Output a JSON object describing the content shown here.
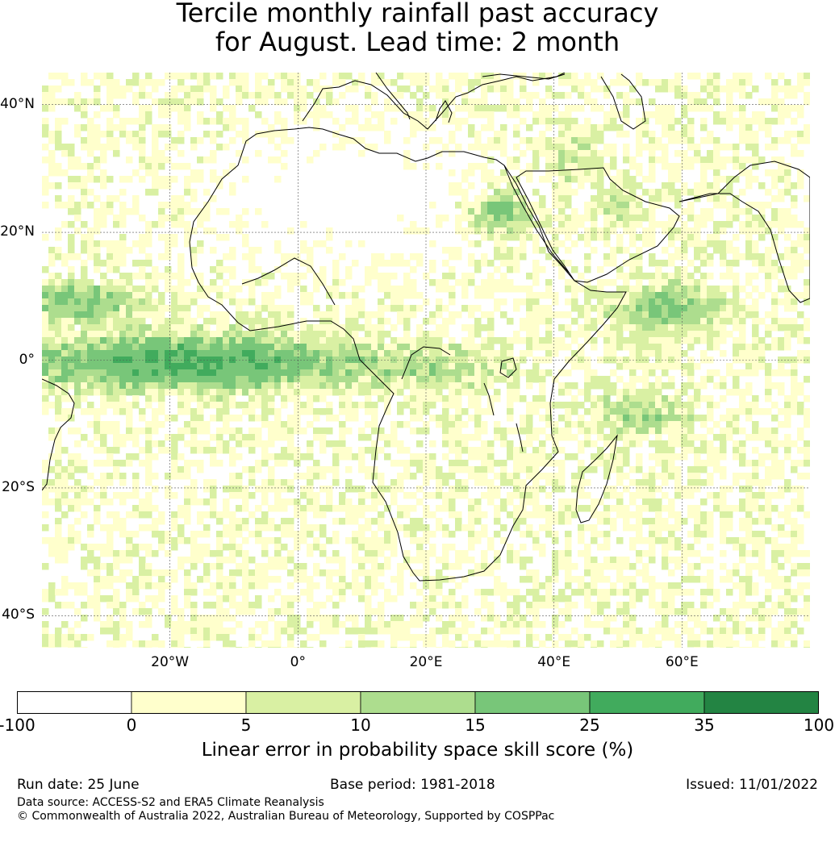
{
  "title_line1": "Tercile monthly rainfall past accuracy",
  "title_line2": "for August. Lead time: 2 month",
  "map": {
    "lon_range": [
      -40,
      80
    ],
    "lat_range": [
      -45,
      45
    ],
    "lat_ticks": [
      {
        "value": 40,
        "label": "40°N"
      },
      {
        "value": 20,
        "label": "20°N"
      },
      {
        "value": 0,
        "label": "0°"
      },
      {
        "value": -20,
        "label": "20°S"
      },
      {
        "value": -40,
        "label": "40°S"
      }
    ],
    "lon_ticks": [
      {
        "value": -20,
        "label": "20°W"
      },
      {
        "value": 0,
        "label": "0°"
      },
      {
        "value": 20,
        "label": "20°E"
      },
      {
        "value": 40,
        "label": "40°E"
      },
      {
        "value": 60,
        "label": "60°E"
      }
    ],
    "gridlines": true,
    "coastline_color": "#000000"
  },
  "colorbar": {
    "bins": [
      {
        "from": -100,
        "to": 0,
        "color": "#ffffff"
      },
      {
        "from": 0,
        "to": 5,
        "color": "#ffffcc"
      },
      {
        "from": 5,
        "to": 10,
        "color": "#d9f0a3"
      },
      {
        "from": 10,
        "to": 15,
        "color": "#addd8e"
      },
      {
        "from": 15,
        "to": 25,
        "color": "#78c679"
      },
      {
        "from": 25,
        "to": 35,
        "color": "#41ab5d"
      },
      {
        "from": 35,
        "to": 100,
        "color": "#238443"
      }
    ],
    "tick_labels": [
      "-100",
      "0",
      "5",
      "10",
      "15",
      "25",
      "35",
      "100"
    ],
    "label": "Linear error in probability space skill score (%)"
  },
  "footer": {
    "run_date": "Run date: 25 June",
    "base_period": "Base period: 1981-2018",
    "issued": "Issued: 11/01/2022",
    "data_source": "Data source: ACCESS-S2 and ERA5 Climate Reanalysis",
    "copyright": "© Commonwealth of Australia 2022, Australian Bureau of Meteorology, Supported by COSPPac"
  }
}
